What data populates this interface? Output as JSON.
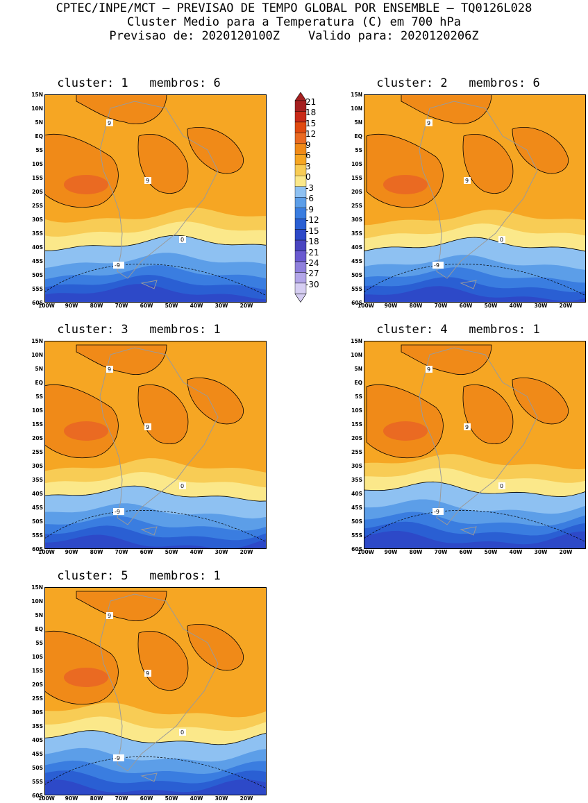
{
  "header": {
    "line1": "CPTEC/INPE/MCT – PREVISAO DE TEMPO GLOBAL POR ENSEMBLE – TQ0126L028",
    "line2": "Cluster Medio para a Temperatura (C) em 700 hPa",
    "line3": "Previsao de: 2020120100Z    Valido para: 2020120206Z"
  },
  "lat_ticks": [
    "15N",
    "10N",
    "5N",
    "EQ",
    "5S",
    "10S",
    "15S",
    "20S",
    "25S",
    "30S",
    "35S",
    "40S",
    "45S",
    "50S",
    "55S",
    "60S"
  ],
  "lon_ticks": [
    "100W",
    "90W",
    "80W",
    "70W",
    "60W",
    "50W",
    "40W",
    "30W",
    "20W"
  ],
  "colorbar": {
    "labels": [
      "21",
      "18",
      "15",
      "12",
      "9",
      "6",
      "3",
      "0",
      "-3",
      "-6",
      "-9",
      "-12",
      "-15",
      "-18",
      "-21",
      "-24",
      "-27",
      "-30"
    ],
    "colors": [
      "#a52020",
      "#c82a18",
      "#e04a10",
      "#ea6a22",
      "#f08a18",
      "#f6a623",
      "#f8cc55",
      "#fbe88a",
      "#8ec1f2",
      "#5c9ee8",
      "#3a7de0",
      "#2a5fd3",
      "#2d49c8",
      "#4a45c0",
      "#6a5ad0",
      "#8f80dc",
      "#b3a6e8",
      "#d6cef2"
    ]
  },
  "panels": [
    {
      "title": "cluster: 1   membros: 6"
    },
    {
      "title": "cluster: 2   membros: 6"
    },
    {
      "title": "cluster: 3   membros: 1"
    },
    {
      "title": "cluster: 4   membros: 1"
    },
    {
      "title": "cluster: 5   membros: 1"
    }
  ],
  "contour_labels": [
    "9",
    "0",
    "-9"
  ]
}
